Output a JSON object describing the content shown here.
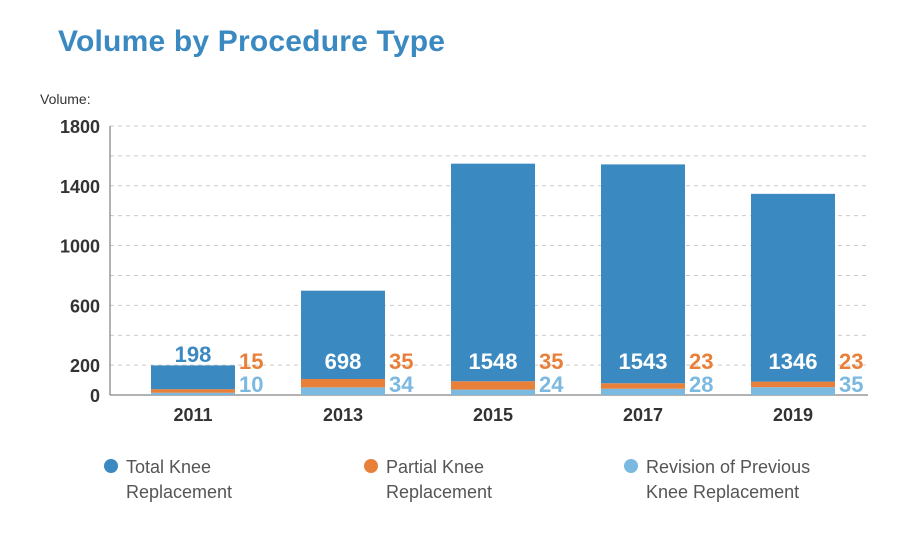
{
  "chart_data": {
    "type": "bar",
    "title": "Volume by Procedure Type",
    "ylabel": "Volume:",
    "xlabel": "",
    "categories": [
      "2011",
      "2013",
      "2015",
      "2017",
      "2019"
    ],
    "ylim": [
      0,
      1800
    ],
    "yticks": [
      0,
      200,
      600,
      1000,
      1400,
      1800
    ],
    "grid": true,
    "series": [
      {
        "name": "Total Knee Replacement",
        "color": "#3a89c1",
        "values": [
          198,
          698,
          1548,
          1543,
          1346
        ]
      },
      {
        "name": "Partial Knee Replacement",
        "color": "#e8803a",
        "values": [
          15,
          35,
          35,
          23,
          23
        ]
      },
      {
        "name": "Revision of Previous Knee Replacement",
        "color": "#7cb9e0",
        "values": [
          10,
          34,
          24,
          28,
          35
        ]
      }
    ],
    "legend_position": "bottom"
  },
  "legend": [
    {
      "line1": "Total Knee",
      "line2": "Replacement",
      "color": "#3a89c1"
    },
    {
      "line1": "Partial Knee",
      "line2": "Replacement",
      "color": "#e8803a"
    },
    {
      "line1": "Revision of Previous",
      "line2": "Knee Replacement",
      "color": "#7cb9e0"
    }
  ]
}
